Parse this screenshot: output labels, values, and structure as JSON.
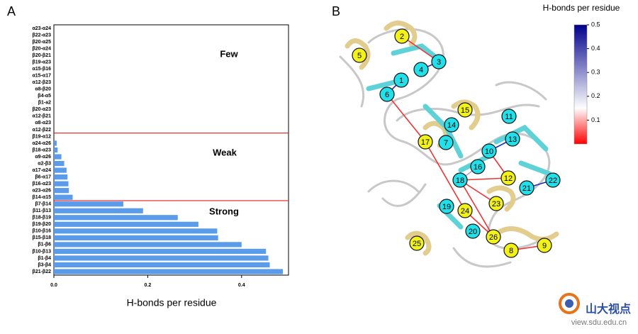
{
  "chart_data": {
    "type": "hbar",
    "panel_label": "A",
    "xlabel": "H-bonds per residue",
    "color": "#5a9bea",
    "categories": [
      "α23-α24",
      "β22-α23",
      "β20-α25",
      "β20-α24",
      "β20-β21",
      "β19-α23",
      "α15-β16",
      "α15-α17",
      "α12-β23",
      "α8-β20",
      "β4-α5",
      "β1-a2",
      "β20-α23",
      "α12-β21",
      "α8-α23",
      "α12-β22",
      "β19-α12",
      "α24-α26",
      "β18-α23",
      "α9-α26",
      "α2-β3",
      "α17-α24",
      "β6-α17",
      "β16-α23",
      "α23-α26",
      "β14-α15",
      "β7-β14",
      "β11-β13",
      "β18-β19",
      "β19-β20",
      "β10-β16",
      "β15-β18",
      "β1-β6",
      "β10-β13",
      "β1-β4",
      "β3-β4",
      "β21-β22"
    ],
    "values": [
      0,
      0,
      0,
      0,
      0,
      0,
      0,
      0,
      0,
      0,
      0,
      0,
      0,
      0,
      0,
      0,
      0,
      0.006,
      0.008,
      0.016,
      0.022,
      0.027,
      0.029,
      0.031,
      0.032,
      0.04,
      0.148,
      0.19,
      0.264,
      0.308,
      0.348,
      0.35,
      0.4,
      0.452,
      0.457,
      0.46,
      0.488
    ],
    "xlim": [
      0,
      0.5
    ],
    "xticks": [
      {
        "value": 0,
        "label": "0.0"
      },
      0.2,
      0.4
    ],
    "annotations": [
      "Few",
      "Weak",
      "Strong"
    ]
  },
  "panel_b": {
    "panel_label": "B",
    "colorbar": {
      "title": "H-bonds per residue",
      "lim": [
        0,
        0.5
      ],
      "ticks": [
        0.1,
        0.2,
        0.3,
        0.4,
        0.5
      ]
    },
    "nodes": [
      "1",
      "2",
      "3",
      "4",
      "5",
      "6",
      "7",
      "8",
      "9",
      "10",
      "11",
      "12",
      "13",
      "14",
      "15",
      "16",
      "17",
      "18",
      "19",
      "20",
      "21",
      "22",
      "23",
      "24",
      "25",
      "26"
    ]
  },
  "watermark": {
    "name": "山大视点",
    "url": "view.sdu.edu.cn"
  }
}
